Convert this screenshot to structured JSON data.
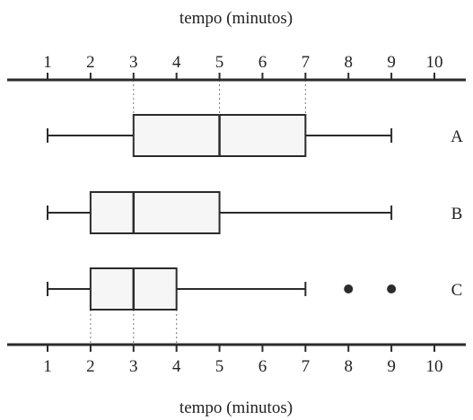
{
  "chart_data": {
    "type": "boxplot",
    "top_axis_label": "tempo (minutos)",
    "bottom_axis_label": "tempo (minutos)",
    "xticks": [
      1,
      2,
      3,
      4,
      5,
      6,
      7,
      8,
      9,
      10
    ],
    "xlim": [
      1,
      10
    ],
    "series": [
      {
        "name": "A",
        "min": 1,
        "q1": 3,
        "median": 5,
        "q3": 7,
        "max": 9,
        "outliers": []
      },
      {
        "name": "B",
        "min": 1,
        "q1": 2,
        "median": 3,
        "q3": 5,
        "max": 9,
        "outliers": []
      },
      {
        "name": "C",
        "min": 1,
        "q1": 2,
        "median": 3,
        "q3": 4,
        "max": 7,
        "outliers": [
          8,
          9
        ]
      }
    ],
    "reference_lines_top": [
      3,
      5,
      7
    ],
    "reference_lines_bottom": [
      2,
      3,
      4
    ]
  }
}
